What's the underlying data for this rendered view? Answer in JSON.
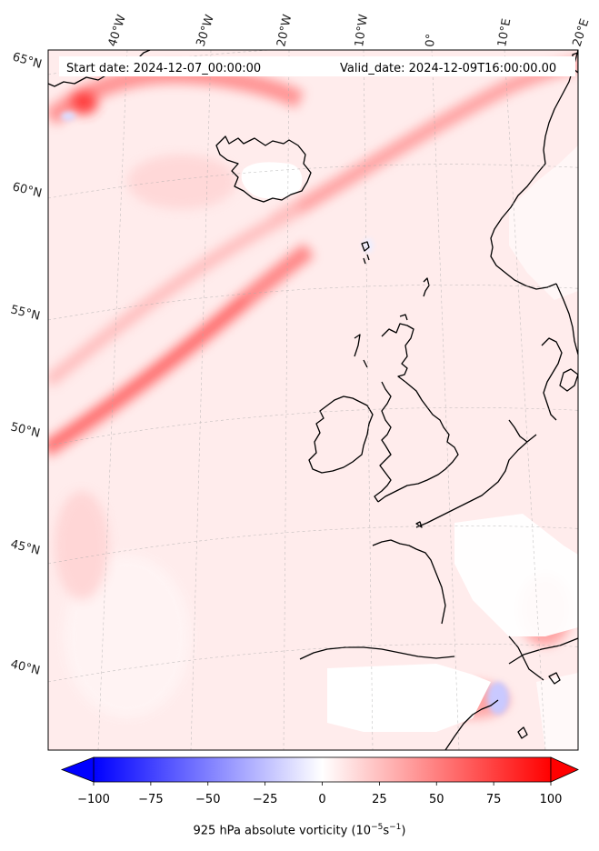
{
  "header": {
    "start_date": "Start date: 2024-12-07_00:00:00",
    "valid_date": "Valid_date: 2024-12-09T16:00:00.00"
  },
  "longitude_labels": [
    "40°W",
    "30°W",
    "20°W",
    "10°W",
    "0°",
    "10°E",
    "20°E"
  ],
  "latitude_labels": [
    "65°N",
    "60°N",
    "55°N",
    "50°N",
    "45°N",
    "40°N"
  ],
  "colorbar": {
    "ticks": [
      "−100",
      "−75",
      "−50",
      "−25",
      "0",
      "25",
      "50",
      "75",
      "100"
    ],
    "min": -100,
    "max": 100,
    "label_main": "925 hPa absolute vorticity (10",
    "label_exp1": "−5",
    "label_mid": "s",
    "label_exp2": "−1",
    "label_end": ")",
    "color_min": "#0000ff",
    "color_zero": "#ffffff",
    "color_max": "#ff0000"
  }
}
